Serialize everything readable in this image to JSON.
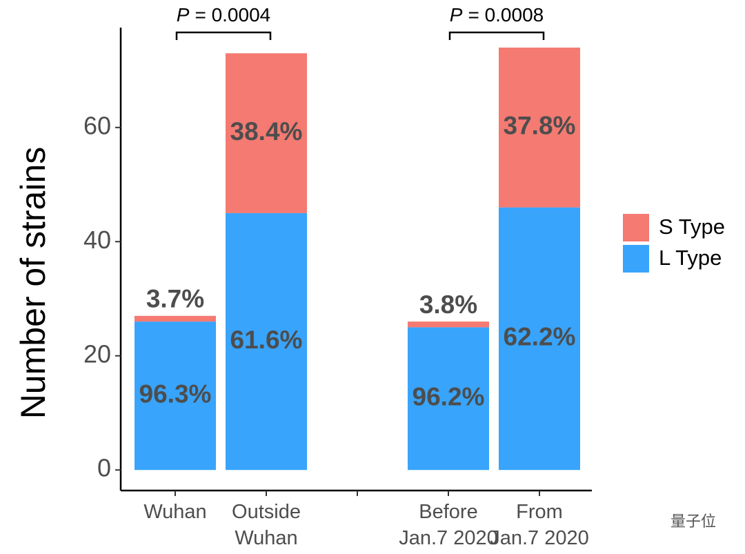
{
  "chart_data": {
    "type": "stacked_bar",
    "ylabel": "Number of strains",
    "categories": [
      "Wuhan",
      "Outside\nWuhan",
      null,
      "Before\nJan.7 2020",
      "From\nJan.7 2020"
    ],
    "series": [
      {
        "name": "L Type",
        "color": "#38a4fb",
        "values": [
          26,
          45,
          null,
          25,
          46
        ],
        "percent_labels": [
          "96.3%",
          "61.6%",
          null,
          "96.2%",
          "62.2%"
        ]
      },
      {
        "name": "S Type",
        "color": "#f47a72",
        "values": [
          1,
          28,
          null,
          1,
          28
        ],
        "percent_labels": [
          "3.7%",
          "38.4%",
          null,
          "3.8%",
          "37.8%"
        ]
      }
    ],
    "comparisons": [
      {
        "symbol": "P",
        "text": "= 0.0004"
      },
      {
        "symbol": "P",
        "text": "= 0.0008"
      }
    ],
    "ylim": [
      -3.6,
      77.5
    ],
    "yticks": [
      0,
      20,
      40,
      60
    ],
    "legend": "right",
    "watermark": "量子位"
  }
}
